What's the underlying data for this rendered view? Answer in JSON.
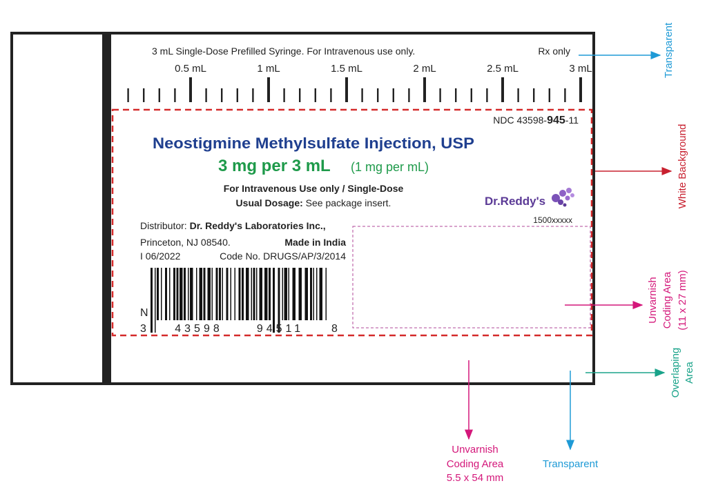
{
  "scale_header": {
    "description": "3 mL Single-Dose Prefilled Syringe. For Intravenous use only.",
    "rx": "Rx only",
    "graduations": [
      "0.5 mL",
      "1 mL",
      "1.5 mL",
      "2 mL",
      "2.5 mL",
      "3 mL"
    ]
  },
  "label": {
    "ndc": {
      "prefix": "NDC 43598-",
      "product_code": "945",
      "suffix": "-11"
    },
    "product_name": "Neostigmine Methylsulfate Injection, USP",
    "strength": "3 mg per 3 mL",
    "concentration": "(1 mg per  mL)",
    "route": "For  Intravenous Use only / Single-Dose",
    "dosage": {
      "label": "Usual Dosage:",
      "text": " See package insert."
    },
    "brand": "Dr.Reddy's",
    "code": "1500xxxxx",
    "distributor": {
      "label": "Distributor:",
      "name": " Dr. Reddy's Laboratories Inc.,"
    },
    "address": "Princeton, NJ 08540.",
    "origin": "Made in India",
    "revision": "I 06/2022",
    "code_no": "Code No. DRUGS/AP/3/2014",
    "barcode": {
      "prefix": "N",
      "digits": [
        "3",
        "43598",
        "94511",
        "8"
      ]
    }
  },
  "annotations": {
    "transparent_top": "Transparent",
    "white_background": "White Background",
    "coding_area_right": [
      "Unvarnish",
      "Coding Area",
      "(11 x 27 mm)"
    ],
    "overlapping_area": [
      "Overlaping",
      "Area"
    ],
    "coding_area_bottom": [
      "Unvarnish",
      "Coding Area",
      "5.5 x 54 mm"
    ],
    "transparent_bottom": "Transparent"
  }
}
